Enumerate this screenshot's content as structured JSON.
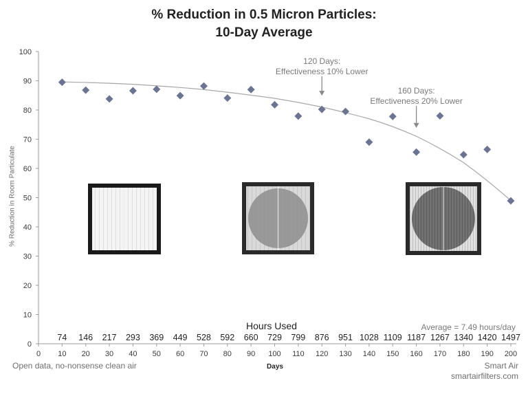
{
  "title_line1": "% Reduction in 0.5 Micron Particles:",
  "title_line2": "10-Day Average",
  "hours_title": "Hours Used",
  "average_note": "Average = 7.49 hours/day",
  "footer_left": "Open data, no-nonsense clean air",
  "footer_right_line1": "Smart Air",
  "footer_right_line2": "smartairfilters.com",
  "chart_data": {
    "type": "scatter",
    "xlabel": "Days",
    "ylabel": "% Reduction in Room Particulate",
    "xlim": [
      0,
      200
    ],
    "ylim": [
      0,
      100
    ],
    "x_ticks": [
      0,
      10,
      20,
      30,
      40,
      50,
      60,
      70,
      80,
      90,
      100,
      110,
      120,
      130,
      140,
      150,
      160,
      170,
      180,
      190,
      200
    ],
    "y_ticks": [
      0,
      10,
      20,
      30,
      40,
      50,
      60,
      70,
      80,
      90,
      100
    ],
    "grid": false,
    "marker_color": "#6b7593",
    "points": [
      {
        "x": 10,
        "y": 89.5
      },
      {
        "x": 20,
        "y": 86.8
      },
      {
        "x": 30,
        "y": 83.8
      },
      {
        "x": 40,
        "y": 86.6
      },
      {
        "x": 50,
        "y": 87.1
      },
      {
        "x": 60,
        "y": 84.9
      },
      {
        "x": 70,
        "y": 88.2
      },
      {
        "x": 80,
        "y": 84.1
      },
      {
        "x": 90,
        "y": 87.0
      },
      {
        "x": 100,
        "y": 81.8
      },
      {
        "x": 110,
        "y": 77.9
      },
      {
        "x": 120,
        "y": 80.2
      },
      {
        "x": 130,
        "y": 79.5
      },
      {
        "x": 140,
        "y": 69.0
      },
      {
        "x": 150,
        "y": 77.8
      },
      {
        "x": 160,
        "y": 65.6
      },
      {
        "x": 170,
        "y": 78.0
      },
      {
        "x": 180,
        "y": 64.7
      },
      {
        "x": 190,
        "y": 66.5
      },
      {
        "x": 200,
        "y": 48.9
      }
    ],
    "trendline": {
      "type": "curve",
      "color": "#a8a8a8",
      "points": [
        {
          "x": 10,
          "y": 89.6
        },
        {
          "x": 40,
          "y": 88.8
        },
        {
          "x": 70,
          "y": 87.0
        },
        {
          "x": 100,
          "y": 84.0
        },
        {
          "x": 120,
          "y": 81.0
        },
        {
          "x": 140,
          "y": 77.0
        },
        {
          "x": 160,
          "y": 71.0
        },
        {
          "x": 180,
          "y": 62.0
        },
        {
          "x": 200,
          "y": 49.0
        }
      ]
    },
    "hours_used": [
      {
        "day": 10,
        "label": "74"
      },
      {
        "day": 20,
        "label": "146"
      },
      {
        "day": 30,
        "label": "217"
      },
      {
        "day": 40,
        "label": "293"
      },
      {
        "day": 50,
        "label": "369"
      },
      {
        "day": 60,
        "label": "449"
      },
      {
        "day": 70,
        "label": "528"
      },
      {
        "day": 80,
        "label": "592"
      },
      {
        "day": 90,
        "label": "660"
      },
      {
        "day": 100,
        "label": "729"
      },
      {
        "day": 110,
        "label": "799"
      },
      {
        "day": 120,
        "label": "876"
      },
      {
        "day": 130,
        "label": "951"
      },
      {
        "day": 140,
        "label": "1028"
      },
      {
        "day": 150,
        "label": "1109"
      },
      {
        "day": 160,
        "label": "1187"
      },
      {
        "day": 170,
        "label": "1267"
      },
      {
        "day": 180,
        "label": "1340"
      },
      {
        "day": 190,
        "label": "1420"
      },
      {
        "day": 200,
        "label": "1497"
      }
    ],
    "annotations": [
      {
        "lines": [
          "120 Days:",
          "Effectiveness 10% Lower"
        ],
        "x": 120,
        "arrow_to_y": 83.5
      },
      {
        "lines": [
          "160 Days:",
          "Effectiveness 20% Lower"
        ],
        "x": 160,
        "arrow_to_y": 72.5
      }
    ],
    "filter_photos": [
      {
        "name": "new-filter-photo",
        "condition": "clean"
      },
      {
        "name": "used-filter-photo",
        "condition": "gray"
      },
      {
        "name": "dirty-filter-photo",
        "condition": "dark"
      }
    ]
  }
}
